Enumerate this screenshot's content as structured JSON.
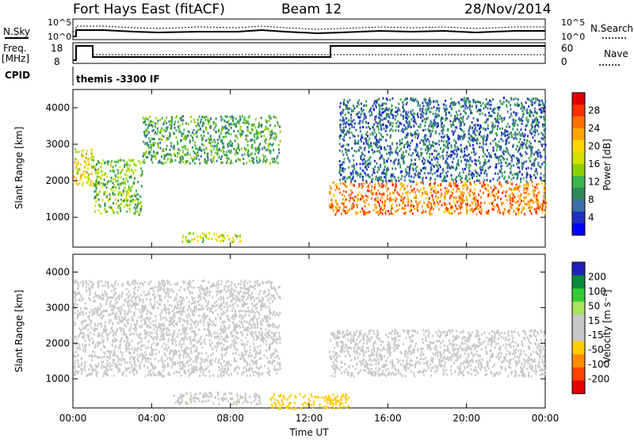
{
  "header": {
    "radar": "Fort Hays East (fitACF)",
    "beam": "Beam 12",
    "date": "28/Nov/2014"
  },
  "top_panels": {
    "nsky_label": "N.Sky",
    "nsky_ticks": [
      "10^5",
      "10^0"
    ],
    "nsearch_ticks": [
      "10^5",
      "10^0"
    ],
    "nsearch_label": "N.Search",
    "freq_label_line1": "Freq.",
    "freq_label_line2": "[MHz]",
    "freq_ticks": [
      "18",
      "8"
    ],
    "nave_ticks": [
      "60",
      "0"
    ],
    "nave_label": "Nave",
    "cpid_label": "CPID",
    "cpid_value": "themis -3300 IF"
  },
  "axes": {
    "ylabel": "Slant Range [km]",
    "xlabel": "Time UT",
    "y_ticks": [
      "4000",
      "3000",
      "2000",
      "1000"
    ],
    "x_ticks": [
      "00:00",
      "04:00",
      "08:00",
      "12:00",
      "16:00",
      "20:00",
      "00:00"
    ]
  },
  "colorbars": {
    "power": {
      "label": "Power [dB]",
      "ticks": [
        "28",
        "24",
        "20",
        "16",
        "12",
        "8",
        "4"
      ],
      "colors": [
        "#e00000",
        "#ff3000",
        "#ff7000",
        "#ffa500",
        "#ffd700",
        "#d4e000",
        "#8ad000",
        "#3cb44b",
        "#2e8b57",
        "#3a6ea5",
        "#2030c0",
        "#0000ff"
      ]
    },
    "velocity": {
      "label": "Velocity [m s⁻¹]",
      "ticks": [
        "200",
        "100",
        "50",
        "15",
        "-15",
        "-50",
        "-100",
        "-200"
      ],
      "colors": [
        "#2020c0",
        "#0a8a3a",
        "#33cc33",
        "#a8e060",
        "#c8c8c8",
        "#c8c8c8",
        "#ffcc00",
        "#ff8c00",
        "#ff4500",
        "#e00000"
      ]
    }
  },
  "chart_data": [
    {
      "type": "heatmap",
      "name": "power",
      "x_range_hours": [
        0,
        24
      ],
      "y_range_km": [
        180,
        4500
      ],
      "colorbar_range_db": [
        0,
        30
      ],
      "features": [
        {
          "t": [
            0.0,
            1.0
          ],
          "range_km": [
            1900,
            2900
          ],
          "power_db": 18
        },
        {
          "t": [
            1.0,
            3.5
          ],
          "range_km": [
            1100,
            2600
          ],
          "power_db": 12
        },
        {
          "t": [
            3.5,
            10.5
          ],
          "range_km": [
            2500,
            3800
          ],
          "power_db": 10
        },
        {
          "t": [
            5.5,
            8.5
          ],
          "range_km": [
            350,
            600
          ],
          "power_db": 16
        },
        {
          "t": [
            13.0,
            24.0
          ],
          "range_km": [
            1100,
            2000
          ],
          "power_db": 24
        },
        {
          "t": [
            13.5,
            24.0
          ],
          "range_km": [
            2000,
            4300
          ],
          "power_db": 6
        }
      ]
    },
    {
      "type": "heatmap",
      "name": "velocity",
      "x_range_hours": [
        0,
        24
      ],
      "y_range_km": [
        180,
        4500
      ],
      "colorbar_range_ms": [
        -200,
        200
      ],
      "features": [
        {
          "t": [
            0.0,
            10.5
          ],
          "range_km": [
            1100,
            3800
          ],
          "velocity_ms": 0
        },
        {
          "t": [
            5.0,
            9.5
          ],
          "range_km": [
            300,
            650
          ],
          "velocity_ms": 40
        },
        {
          "t": [
            10.0,
            14.0
          ],
          "range_km": [
            180,
            600
          ],
          "velocity_ms": -80
        },
        {
          "t": [
            13.0,
            24.0
          ],
          "range_km": [
            1100,
            2400
          ],
          "velocity_ms": 0
        }
      ]
    }
  ]
}
